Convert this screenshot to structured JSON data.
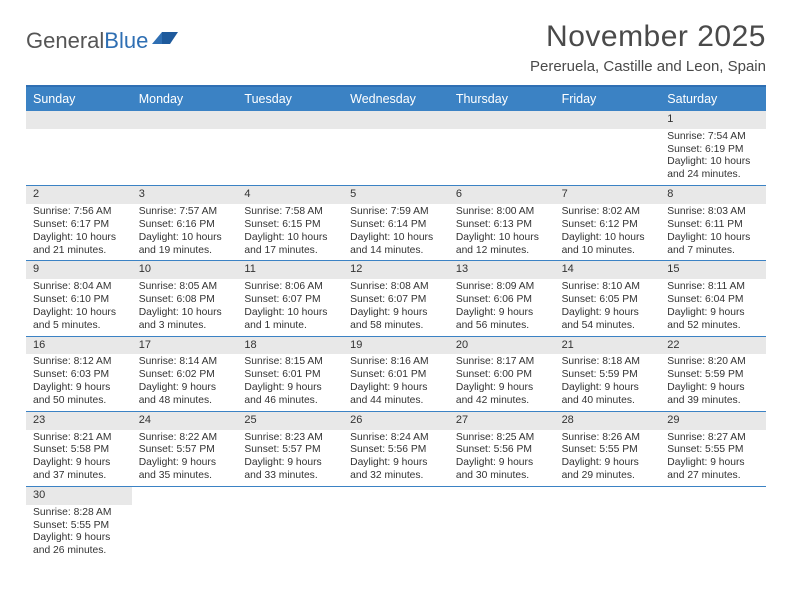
{
  "logo": {
    "text1": "General",
    "text2": "Blue"
  },
  "header": {
    "month_title": "November 2025",
    "location": "Pereruela, Castille and Leon, Spain"
  },
  "colors": {
    "header_bar": "#3b82c4",
    "header_rule": "#2f6fb3",
    "daynum_bg": "#e8e8e8",
    "text": "#333333",
    "logo_gray": "#555555",
    "logo_blue": "#2f6fb3"
  },
  "day_names": [
    "Sunday",
    "Monday",
    "Tuesday",
    "Wednesday",
    "Thursday",
    "Friday",
    "Saturday"
  ],
  "weeks": [
    [
      null,
      null,
      null,
      null,
      null,
      null,
      {
        "n": "1",
        "sunrise": "Sunrise: 7:54 AM",
        "sunset": "Sunset: 6:19 PM",
        "day1": "Daylight: 10 hours",
        "day2": "and 24 minutes."
      }
    ],
    [
      {
        "n": "2",
        "sunrise": "Sunrise: 7:56 AM",
        "sunset": "Sunset: 6:17 PM",
        "day1": "Daylight: 10 hours",
        "day2": "and 21 minutes."
      },
      {
        "n": "3",
        "sunrise": "Sunrise: 7:57 AM",
        "sunset": "Sunset: 6:16 PM",
        "day1": "Daylight: 10 hours",
        "day2": "and 19 minutes."
      },
      {
        "n": "4",
        "sunrise": "Sunrise: 7:58 AM",
        "sunset": "Sunset: 6:15 PM",
        "day1": "Daylight: 10 hours",
        "day2": "and 17 minutes."
      },
      {
        "n": "5",
        "sunrise": "Sunrise: 7:59 AM",
        "sunset": "Sunset: 6:14 PM",
        "day1": "Daylight: 10 hours",
        "day2": "and 14 minutes."
      },
      {
        "n": "6",
        "sunrise": "Sunrise: 8:00 AM",
        "sunset": "Sunset: 6:13 PM",
        "day1": "Daylight: 10 hours",
        "day2": "and 12 minutes."
      },
      {
        "n": "7",
        "sunrise": "Sunrise: 8:02 AM",
        "sunset": "Sunset: 6:12 PM",
        "day1": "Daylight: 10 hours",
        "day2": "and 10 minutes."
      },
      {
        "n": "8",
        "sunrise": "Sunrise: 8:03 AM",
        "sunset": "Sunset: 6:11 PM",
        "day1": "Daylight: 10 hours",
        "day2": "and 7 minutes."
      }
    ],
    [
      {
        "n": "9",
        "sunrise": "Sunrise: 8:04 AM",
        "sunset": "Sunset: 6:10 PM",
        "day1": "Daylight: 10 hours",
        "day2": "and 5 minutes."
      },
      {
        "n": "10",
        "sunrise": "Sunrise: 8:05 AM",
        "sunset": "Sunset: 6:08 PM",
        "day1": "Daylight: 10 hours",
        "day2": "and 3 minutes."
      },
      {
        "n": "11",
        "sunrise": "Sunrise: 8:06 AM",
        "sunset": "Sunset: 6:07 PM",
        "day1": "Daylight: 10 hours",
        "day2": "and 1 minute."
      },
      {
        "n": "12",
        "sunrise": "Sunrise: 8:08 AM",
        "sunset": "Sunset: 6:07 PM",
        "day1": "Daylight: 9 hours",
        "day2": "and 58 minutes."
      },
      {
        "n": "13",
        "sunrise": "Sunrise: 8:09 AM",
        "sunset": "Sunset: 6:06 PM",
        "day1": "Daylight: 9 hours",
        "day2": "and 56 minutes."
      },
      {
        "n": "14",
        "sunrise": "Sunrise: 8:10 AM",
        "sunset": "Sunset: 6:05 PM",
        "day1": "Daylight: 9 hours",
        "day2": "and 54 minutes."
      },
      {
        "n": "15",
        "sunrise": "Sunrise: 8:11 AM",
        "sunset": "Sunset: 6:04 PM",
        "day1": "Daylight: 9 hours",
        "day2": "and 52 minutes."
      }
    ],
    [
      {
        "n": "16",
        "sunrise": "Sunrise: 8:12 AM",
        "sunset": "Sunset: 6:03 PM",
        "day1": "Daylight: 9 hours",
        "day2": "and 50 minutes."
      },
      {
        "n": "17",
        "sunrise": "Sunrise: 8:14 AM",
        "sunset": "Sunset: 6:02 PM",
        "day1": "Daylight: 9 hours",
        "day2": "and 48 minutes."
      },
      {
        "n": "18",
        "sunrise": "Sunrise: 8:15 AM",
        "sunset": "Sunset: 6:01 PM",
        "day1": "Daylight: 9 hours",
        "day2": "and 46 minutes."
      },
      {
        "n": "19",
        "sunrise": "Sunrise: 8:16 AM",
        "sunset": "Sunset: 6:01 PM",
        "day1": "Daylight: 9 hours",
        "day2": "and 44 minutes."
      },
      {
        "n": "20",
        "sunrise": "Sunrise: 8:17 AM",
        "sunset": "Sunset: 6:00 PM",
        "day1": "Daylight: 9 hours",
        "day2": "and 42 minutes."
      },
      {
        "n": "21",
        "sunrise": "Sunrise: 8:18 AM",
        "sunset": "Sunset: 5:59 PM",
        "day1": "Daylight: 9 hours",
        "day2": "and 40 minutes."
      },
      {
        "n": "22",
        "sunrise": "Sunrise: 8:20 AM",
        "sunset": "Sunset: 5:59 PM",
        "day1": "Daylight: 9 hours",
        "day2": "and 39 minutes."
      }
    ],
    [
      {
        "n": "23",
        "sunrise": "Sunrise: 8:21 AM",
        "sunset": "Sunset: 5:58 PM",
        "day1": "Daylight: 9 hours",
        "day2": "and 37 minutes."
      },
      {
        "n": "24",
        "sunrise": "Sunrise: 8:22 AM",
        "sunset": "Sunset: 5:57 PM",
        "day1": "Daylight: 9 hours",
        "day2": "and 35 minutes."
      },
      {
        "n": "25",
        "sunrise": "Sunrise: 8:23 AM",
        "sunset": "Sunset: 5:57 PM",
        "day1": "Daylight: 9 hours",
        "day2": "and 33 minutes."
      },
      {
        "n": "26",
        "sunrise": "Sunrise: 8:24 AM",
        "sunset": "Sunset: 5:56 PM",
        "day1": "Daylight: 9 hours",
        "day2": "and 32 minutes."
      },
      {
        "n": "27",
        "sunrise": "Sunrise: 8:25 AM",
        "sunset": "Sunset: 5:56 PM",
        "day1": "Daylight: 9 hours",
        "day2": "and 30 minutes."
      },
      {
        "n": "28",
        "sunrise": "Sunrise: 8:26 AM",
        "sunset": "Sunset: 5:55 PM",
        "day1": "Daylight: 9 hours",
        "day2": "and 29 minutes."
      },
      {
        "n": "29",
        "sunrise": "Sunrise: 8:27 AM",
        "sunset": "Sunset: 5:55 PM",
        "day1": "Daylight: 9 hours",
        "day2": "and 27 minutes."
      }
    ],
    [
      {
        "n": "30",
        "sunrise": "Sunrise: 8:28 AM",
        "sunset": "Sunset: 5:55 PM",
        "day1": "Daylight: 9 hours",
        "day2": "and 26 minutes."
      },
      null,
      null,
      null,
      null,
      null,
      null
    ]
  ]
}
